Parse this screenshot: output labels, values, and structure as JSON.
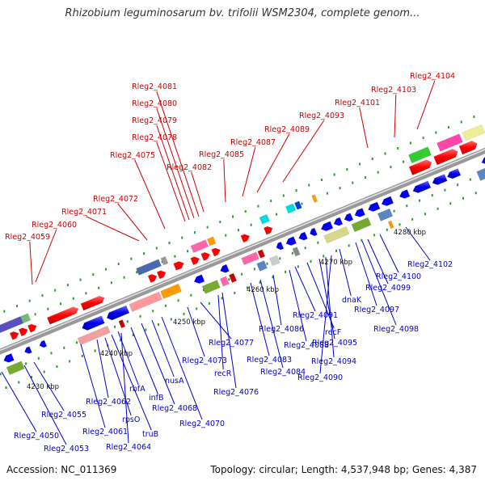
{
  "title": "Rhizobium leguminosarum bv. trifolii WSM2304, complete genom...",
  "footer": {
    "accession": "Accession: NC_011369",
    "topology": "Topology: circular; Length: 4,537,948 bp; Genes: 4,387"
  },
  "colors": {
    "forward_label": "#cc0000",
    "reverse_label": "#0000cc",
    "forward_gene": "#ff0000",
    "reverse_gene": "#0000ee",
    "backbone": "#999999",
    "tick": "#2a9a2a"
  },
  "kbp_ticks": [
    "4230 kbp",
    "4240 kbp",
    "4250 kbp",
    "4260 kbp",
    "4270 kbp",
    "4280 kbp"
  ],
  "top_labels": [
    "Rleg2_4104",
    "Rleg2_4103",
    "Rleg2_4101",
    "Rleg2_4093",
    "Rleg2_4089",
    "Rleg2_4087",
    "Rleg2_4085",
    "Rleg2_4082",
    "Rleg2_4081",
    "Rleg2_4080",
    "Rleg2_4079",
    "Rleg2_4078",
    "Rleg2_4075",
    "Rleg2_4072",
    "Rleg2_4071",
    "Rleg2_4060",
    "Rleg2_4059"
  ],
  "bottom_labels": [
    "Rleg2_4102",
    "Rleg2_4100",
    "Rleg2_4099",
    "Rleg2_4097",
    "Rleg2_4098",
    "dnaK",
    "Rleg2_4091",
    "recF",
    "Rleg2_4095",
    "Rleg2_4094",
    "Rleg2_4088",
    "Rleg2_4090",
    "Rleg2_4086",
    "Rleg2_4083",
    "Rleg2_4084",
    "Rleg2_4077",
    "Rleg2_4073",
    "recR",
    "Rleg2_4076",
    "nusA",
    "rbfA",
    "infB",
    "Rleg2_4068",
    "Rleg2_4070",
    "Rleg2_4062",
    "rpsO",
    "truB",
    "Rleg2_4064",
    "Rleg2_4061",
    "Rleg2_4055",
    "Rleg2_4050",
    "Rleg2_4053"
  ]
}
